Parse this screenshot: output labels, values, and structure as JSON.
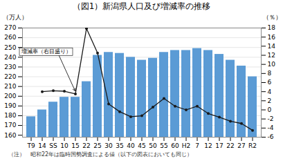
{
  "chart_data": {
    "type": "bar",
    "title": "（図1）新潟県人口及び増減率の推移",
    "ylabel": "（万人）",
    "y2label": "（％）",
    "caption": "（注）　昭和22年は臨時国勢調査による値（以下の図表においても同じ）",
    "annotation": "増減率（右目盛り）",
    "categories": [
      "T9",
      "14",
      "SS",
      "10",
      "15",
      "22",
      "25",
      "30",
      "35",
      "40",
      "45",
      "50",
      "55",
      "60",
      "H2",
      "7",
      "12",
      "17",
      "22",
      "27",
      "R2"
    ],
    "series": [
      {
        "type": "bar",
        "color": "#5b9bd5",
        "values": [
          179,
          186,
          194,
          199,
          199,
          215,
          242,
          245,
          244,
          240,
          237,
          239,
          245,
          247,
          247,
          249,
          247,
          243,
          237,
          231,
          220
        ]
      },
      {
        "type": "line",
        "axis": "y2",
        "color": "#1a1a1a",
        "marker": "circle",
        "values": [
          null,
          4.0,
          4.2,
          4.1,
          3.5,
          17.9,
          12.5,
          1.3,
          -0.4,
          -1.5,
          -1.3,
          0.6,
          2.5,
          0.8,
          0.0,
          0.8,
          -0.8,
          -1.6,
          -2.5,
          -3.0,
          -4.5
        ]
      }
    ],
    "ylim": [
      158,
      270
    ],
    "yticks": [
      160,
      170,
      180,
      190,
      200,
      210,
      220,
      230,
      240,
      250,
      260,
      270
    ],
    "y2lim": [
      -6,
      18
    ],
    "y2ticks": [
      -6,
      -4,
      -2,
      0,
      2,
      4,
      6,
      8,
      10,
      12,
      14,
      16,
      18
    ],
    "grid": true
  }
}
